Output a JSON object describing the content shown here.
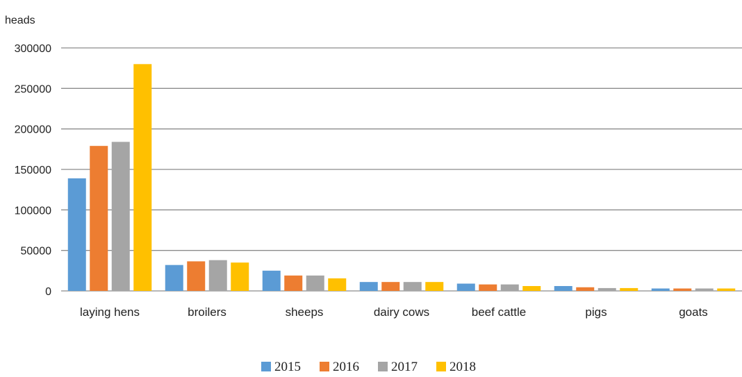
{
  "chart_data": {
    "type": "bar",
    "ylabel": "heads",
    "categories": [
      "laying hens",
      "broilers",
      "sheeps",
      "dairy cows",
      "beef cattle",
      "pigs",
      "goats"
    ],
    "series": [
      {
        "name": "2015",
        "color": "#5B9BD5",
        "values": [
          139000,
          32000,
          25000,
          11000,
          9000,
          6000,
          3000
        ]
      },
      {
        "name": "2016",
        "color": "#ED7D31",
        "values": [
          179000,
          36500,
          19000,
          11000,
          8000,
          4500,
          3000
        ]
      },
      {
        "name": "2017",
        "color": "#A5A5A5",
        "values": [
          184000,
          38000,
          19000,
          11000,
          8000,
          3500,
          3000
        ]
      },
      {
        "name": "2018",
        "color": "#FFC000",
        "values": [
          280000,
          35000,
          15500,
          11000,
          6000,
          3500,
          3000
        ]
      }
    ],
    "ylim": [
      0,
      300000
    ],
    "yticks": [
      "0",
      "50000",
      "100000",
      "150000",
      "200000",
      "250000",
      "300000"
    ],
    "grid": true,
    "legend": "bottom-center"
  }
}
